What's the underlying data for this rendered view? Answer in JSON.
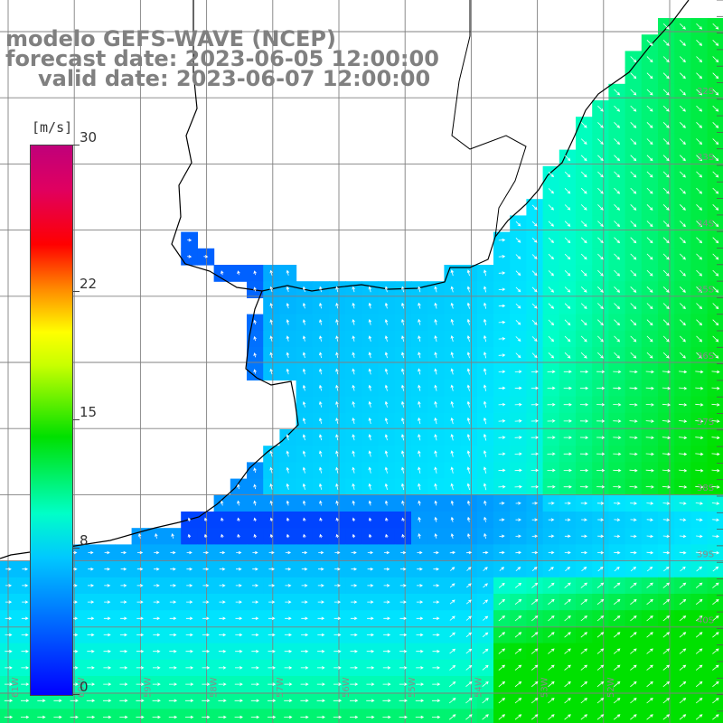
{
  "title": {
    "line1": "modelo GEFS-WAVE (NCEP)",
    "line2": "forecast date: 2023-06-05 12:00:00",
    "line3": "valid date: 2023-06-07 12:00:00"
  },
  "colorbar": {
    "unit": "[m/s]",
    "ticks": [
      {
        "label": "30",
        "value": 30
      },
      {
        "label": "22",
        "value": 22
      },
      {
        "label": "15",
        "value": 15
      },
      {
        "label": "8",
        "value": 8
      },
      {
        "label": "0",
        "value": 0
      }
    ],
    "min": 0,
    "max": 30
  },
  "map": {
    "colors": {
      "land": "#ffffff",
      "coast": "#000000",
      "grid": "#808080",
      "arrow": "#ffffff"
    },
    "lat_labels": [
      "32S",
      "33S",
      "34S",
      "35S",
      "36S",
      "37S",
      "38S",
      "39S",
      "40S"
    ],
    "lon_labels": [
      "61W",
      "60W",
      "59W",
      "58W",
      "57W",
      "56W",
      "55W",
      "54W",
      "53W",
      "52W"
    ]
  }
}
